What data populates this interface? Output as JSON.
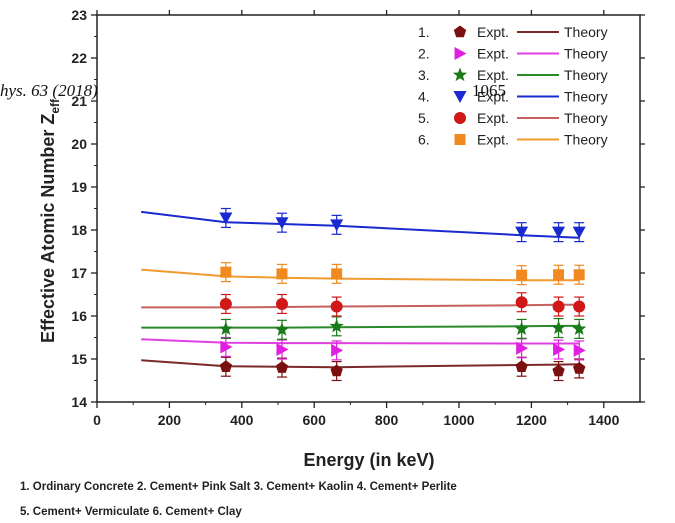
{
  "header": {
    "journal_fragment": "hys. 63 (2018)",
    "page_number": "1065"
  },
  "captions": [
    "1. Ordinary Concrete  2. Cement+ Pink Salt 3. Cement+ Kaolin 4. Cement+ Perlite",
    "5. Cement+ Vermiculate 6. Cement+ Clay"
  ],
  "chart_data": {
    "type": "scatter",
    "xlabel": "Energy (in keV)",
    "ylabel": "Effective Atomic Number Z",
    "ylabel_sub": "eff",
    "xlim": [
      0,
      1500
    ],
    "ylim": [
      14,
      23
    ],
    "xticks": [
      0,
      200,
      400,
      600,
      800,
      1000,
      1200,
      1400
    ],
    "yticks": [
      14,
      15,
      16,
      17,
      18,
      19,
      20,
      21,
      22,
      23
    ],
    "legend_position": "top-right",
    "legend_expt_label": "Expt.",
    "legend_theory_label": "Theory",
    "series": [
      {
        "number": "1.",
        "marker": "pentagon",
        "color": "#7a1010",
        "line_color": "#7a2a2a",
        "expt": {
          "x": [
            356,
            511,
            662,
            1173,
            1275,
            1332
          ],
          "y": [
            14.82,
            14.8,
            14.72,
            14.82,
            14.72,
            14.78
          ],
          "err": 0.22
        },
        "theory": {
          "x": [
            122,
            356,
            511,
            662,
            1173,
            1275,
            1332
          ],
          "y": [
            14.97,
            14.83,
            14.82,
            14.81,
            14.86,
            14.87,
            14.88
          ]
        }
      },
      {
        "number": "2.",
        "marker": "triangle-right",
        "color": "#e020e0",
        "line_color": "#e040e0",
        "expt": {
          "x": [
            356,
            511,
            662,
            1173,
            1275,
            1332
          ],
          "y": [
            15.28,
            15.22,
            15.2,
            15.25,
            15.22,
            15.2
          ],
          "err": 0.22
        },
        "theory": {
          "x": [
            122,
            356,
            511,
            662,
            1173,
            1275,
            1332
          ],
          "y": [
            15.46,
            15.38,
            15.37,
            15.37,
            15.36,
            15.36,
            15.36
          ]
        }
      },
      {
        "number": "3.",
        "marker": "star",
        "color": "#1a7a1a",
        "line_color": "#2a8a2a",
        "expt": {
          "x": [
            356,
            511,
            662,
            1173,
            1275,
            1332
          ],
          "y": [
            15.7,
            15.68,
            15.76,
            15.7,
            15.72,
            15.7
          ],
          "err": 0.22
        },
        "theory": {
          "x": [
            122,
            356,
            511,
            662,
            1173,
            1275,
            1332
          ],
          "y": [
            15.73,
            15.73,
            15.73,
            15.74,
            15.76,
            15.77,
            15.77
          ]
        }
      },
      {
        "number": "4.",
        "marker": "triangle-down",
        "color": "#1a2ad0",
        "line_color": "#1a2ad0",
        "expt": {
          "x": [
            356,
            511,
            662,
            1173,
            1275,
            1332
          ],
          "y": [
            18.28,
            18.17,
            18.12,
            17.95,
            17.95,
            17.95
          ],
          "err": 0.22
        },
        "theory": {
          "x": [
            122,
            356,
            511,
            662,
            1173,
            1275,
            1332
          ],
          "y": [
            18.42,
            18.18,
            18.14,
            18.1,
            17.88,
            17.84,
            17.82
          ]
        }
      },
      {
        "number": "5.",
        "marker": "circle",
        "color": "#d01818",
        "line_color": "#c86060",
        "expt": {
          "x": [
            356,
            511,
            662,
            1173,
            1275,
            1332
          ],
          "y": [
            16.28,
            16.28,
            16.22,
            16.32,
            16.22,
            16.22
          ],
          "err": 0.22
        },
        "theory": {
          "x": [
            122,
            356,
            511,
            662,
            1173,
            1275,
            1332
          ],
          "y": [
            16.2,
            16.2,
            16.21,
            16.22,
            16.25,
            16.26,
            16.26
          ]
        }
      },
      {
        "number": "6.",
        "marker": "square",
        "color": "#f08a20",
        "line_color": "#f09a30",
        "expt": {
          "x": [
            356,
            511,
            662,
            1173,
            1275,
            1332
          ],
          "y": [
            17.02,
            16.98,
            16.98,
            16.95,
            16.96,
            16.96
          ],
          "err": 0.22
        },
        "theory": {
          "x": [
            122,
            356,
            511,
            662,
            1173,
            1275,
            1332
          ],
          "y": [
            17.08,
            16.92,
            16.89,
            16.87,
            16.83,
            16.83,
            16.83
          ]
        }
      }
    ]
  }
}
